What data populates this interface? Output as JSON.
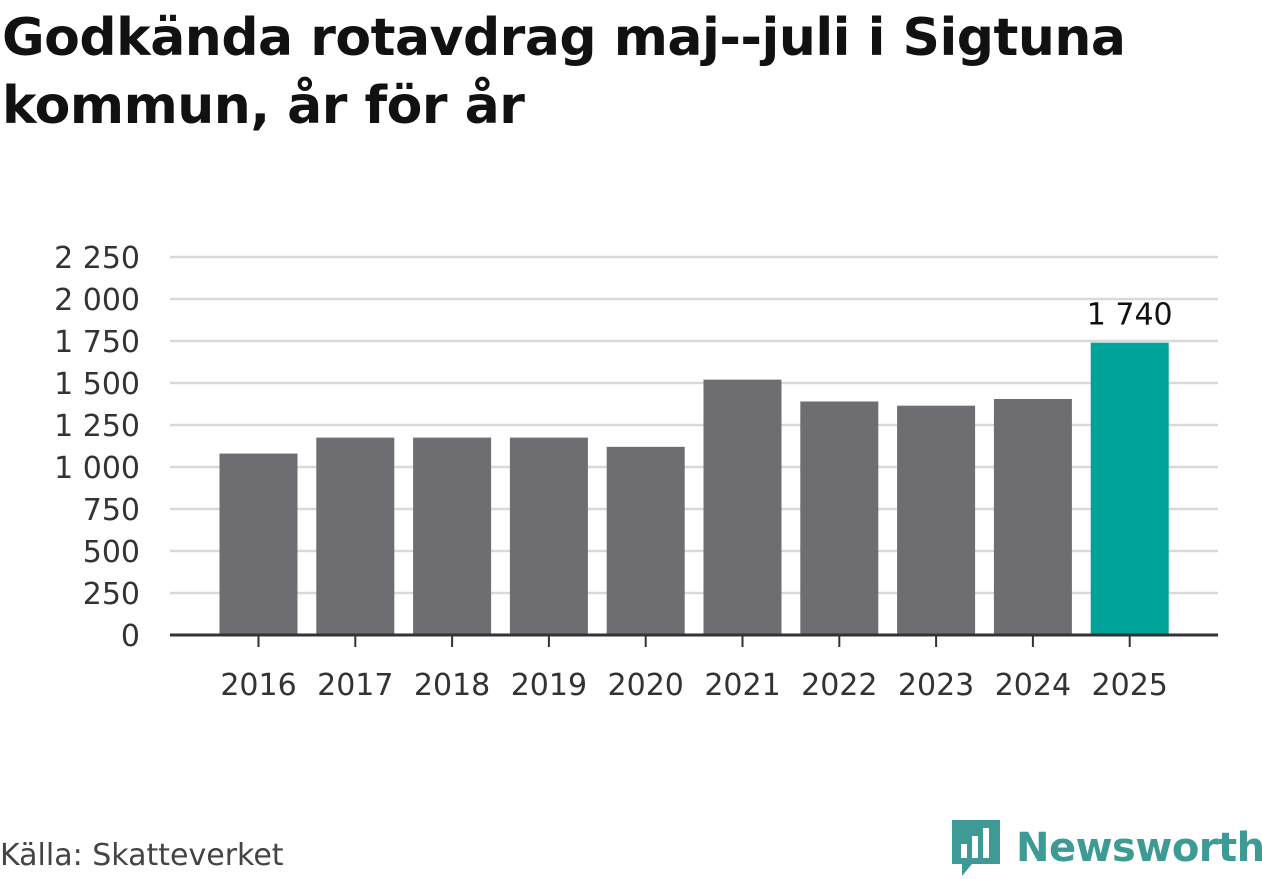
{
  "chart_data": {
    "type": "bar",
    "title": "Godkända rotavdrag maj--juli i Sigtuna kommun, år för år",
    "categories": [
      "2016",
      "2017",
      "2018",
      "2019",
      "2020",
      "2021",
      "2022",
      "2023",
      "2024",
      "2025"
    ],
    "values": [
      1080,
      1175,
      1175,
      1175,
      1120,
      1520,
      1390,
      1365,
      1405,
      1740
    ],
    "highlight_index": 9,
    "highlight_label": "1 740",
    "ylim": [
      0,
      2250
    ],
    "yticks": [
      0,
      250,
      500,
      750,
      1000,
      1250,
      1500,
      1750,
      2000,
      2250
    ],
    "ytick_labels": [
      "0",
      "250",
      "500",
      "750",
      "1 000",
      "1 250",
      "1 500",
      "1 750",
      "2 000",
      "2 250"
    ],
    "grid": true,
    "colors": {
      "bar": "#6e6d72",
      "highlight": "#00a39a",
      "grid": "#d9d9d9",
      "axis": "#333333"
    }
  },
  "footer": {
    "source": "Källa: Skatteverket",
    "brand": "Newsworthy",
    "brand_icon": "newsworthy-logo-icon",
    "brand_color": "#3d9a94"
  }
}
